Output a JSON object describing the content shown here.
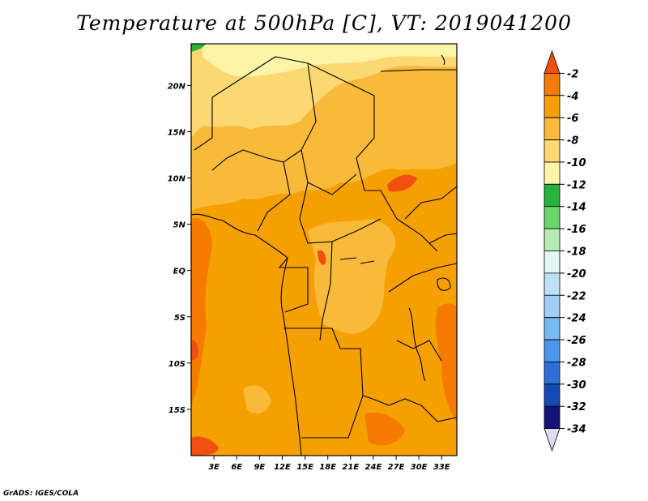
{
  "title": "Temperature at 500hPa [C], VT: 2019041200",
  "credit": "GrADS: IGES/COLA",
  "chart_data": {
    "type": "heatmap",
    "variable": "temperature",
    "level": "500hPa",
    "units": "C",
    "valid_time": "2019041200",
    "lon_range": [
      0,
      35
    ],
    "lat_range": [
      -20,
      24.5
    ],
    "x_ticks": [
      "3E",
      "6E",
      "9E",
      "12E",
      "15E",
      "18E",
      "21E",
      "24E",
      "27E",
      "30E",
      "33E"
    ],
    "x_tick_values": [
      3,
      6,
      9,
      12,
      15,
      18,
      21,
      24,
      27,
      30,
      33
    ],
    "y_ticks": [
      "20N",
      "15N",
      "10N",
      "5N",
      "EQ",
      "5S",
      "10S",
      "15S"
    ],
    "y_tick_values": [
      20,
      15,
      10,
      5,
      0,
      -5,
      -10,
      -15
    ],
    "colorbar": {
      "labels": [
        "-2",
        "-4",
        "-6",
        "-8",
        "-10",
        "-12",
        "-14",
        "-16",
        "-18",
        "-20",
        "-22",
        "-24",
        "-26",
        "-28",
        "-30",
        "-32",
        "-34"
      ],
      "levels": [
        -2,
        -4,
        -6,
        -8,
        -10,
        -12,
        -14,
        -16,
        -18,
        -20,
        -22,
        -24,
        -26,
        -28,
        -30,
        -32,
        -34
      ],
      "colors": [
        "#f04f10",
        "#f57a00",
        "#f5a000",
        "#f9b93a",
        "#fcd873",
        "#fef4a7",
        "#27b43c",
        "#6ad66c",
        "#b8ebaf",
        "#e2f8f6",
        "#bee0f5",
        "#9fd0f4",
        "#77b9f4",
        "#4c96ee",
        "#2f6fd8",
        "#1449b4",
        "#15137a",
        "#dcdcf4"
      ]
    },
    "field_colors": {
      "dominant": "#f5a000",
      "warm_patch": "#f57a00",
      "warmest_patch": "#f04f10",
      "cool_band": "#f9b93a",
      "cooler_north": "#fcd873",
      "coolest_north": "#fef4a7",
      "green_corner": "#27b43c"
    }
  }
}
